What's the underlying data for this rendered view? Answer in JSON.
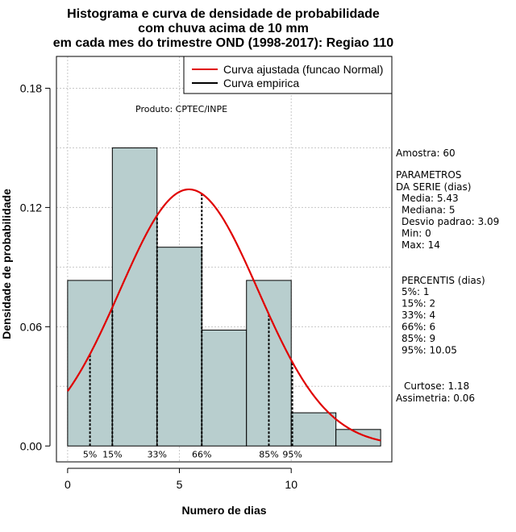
{
  "chart_data": {
    "type": "bar",
    "title_lines": [
      "Histograma e curva de densidade de probabilidade",
      "com chuva acima de 10 mm",
      "em cada mes do trimestre OND (1998-2017): Regiao 110"
    ],
    "xlabel": "Numero de dias",
    "ylabel": "Densidade de probabilidade",
    "xlim": [
      -0.5,
      14.5
    ],
    "ylim": [
      -0.008,
      0.196
    ],
    "x_ticks": [
      0,
      5,
      10
    ],
    "y_ticks": [
      0.0,
      0.06,
      0.12,
      0.18
    ],
    "y_tick_labels": [
      "0.00",
      "0.06",
      "0.12",
      "0.18"
    ],
    "grid": true,
    "bar_color": "#b8cece",
    "curve_color": "#e00000",
    "bins": [
      {
        "x0": 0,
        "x1": 2,
        "density": 0.0833
      },
      {
        "x0": 2,
        "x1": 4,
        "density": 0.15
      },
      {
        "x0": 4,
        "x1": 6,
        "density": 0.1
      },
      {
        "x0": 6,
        "x1": 8,
        "density": 0.0583
      },
      {
        "x0": 8,
        "x1": 10,
        "density": 0.0833
      },
      {
        "x0": 10,
        "x1": 12,
        "density": 0.0167
      },
      {
        "x0": 12,
        "x1": 14,
        "density": 0.0083
      }
    ],
    "normal_fit": {
      "mean": 5.43,
      "sd": 3.09,
      "x_range": [
        0,
        14
      ]
    },
    "percentile_markers": [
      {
        "label": "5%",
        "x": 1
      },
      {
        "label": "15%",
        "x": 2
      },
      {
        "label": "33%",
        "x": 4
      },
      {
        "label": "66%",
        "x": 6
      },
      {
        "label": "85%",
        "x": 9
      },
      {
        "label": "95%",
        "x": 10.05
      }
    ],
    "legend": {
      "placement": "top-right",
      "entries": [
        {
          "label": "Curva ajustada (funcao Normal)",
          "color": "#e00000"
        },
        {
          "label": "Curva empirica",
          "color": "#000000"
        }
      ]
    },
    "annotation": "Produto: CPTEC/INPE"
  },
  "side_panel": {
    "amostra": "Amostra: 60",
    "params_title_1": " PARAMETROS",
    "params_title_2": "DA SERIE (dias)",
    "params": [
      "Media: 5.43",
      "Mediana: 5",
      "Desvio padrao: 3.09",
      "Min: 0",
      "Max: 14"
    ],
    "percentis_title": "PERCENTIS (dias)",
    "percentis": [
      " 5%: 1",
      "15%: 2",
      "33%: 4",
      "66%: 6",
      "85%: 9",
      "95%: 10.05"
    ],
    "curtose": "Curtose: 1.18",
    "assimetria": "Assimetria: 0.06"
  }
}
